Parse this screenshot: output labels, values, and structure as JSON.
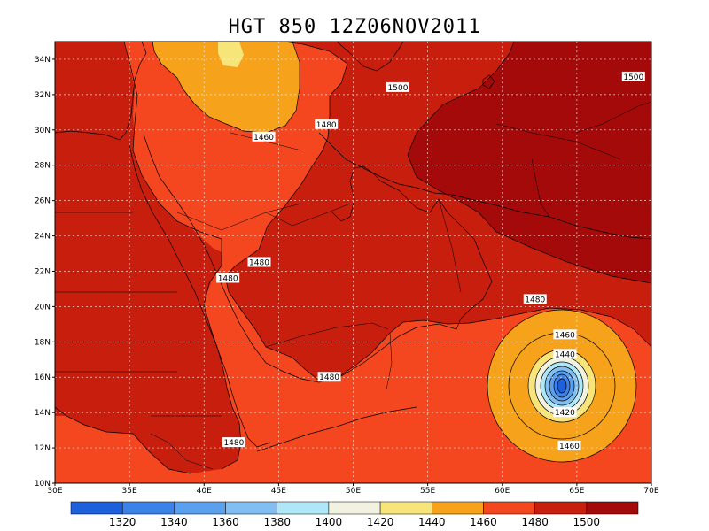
{
  "title": "HGT 850  12Z06NOV2011",
  "map": {
    "lon_range": [
      30,
      70
    ],
    "lat_range": [
      10,
      35
    ],
    "lon_ticks": [
      "30E",
      "35E",
      "40E",
      "45E",
      "50E",
      "55E",
      "60E",
      "65E",
      "70E"
    ],
    "lat_ticks": [
      "10N",
      "12N",
      "14N",
      "16N",
      "18N",
      "20N",
      "22N",
      "24N",
      "26N",
      "28N",
      "30N",
      "32N",
      "34N"
    ],
    "grid": "dashed",
    "contour_labels": [
      {
        "text": "1500",
        "lon": 53.0,
        "lat": 32.4
      },
      {
        "text": "1500",
        "lon": 68.8,
        "lat": 33.0
      },
      {
        "text": "1480",
        "lon": 48.2,
        "lat": 30.3
      },
      {
        "text": "1460",
        "lon": 44.0,
        "lat": 29.6
      },
      {
        "text": "1480",
        "lon": 43.7,
        "lat": 22.5
      },
      {
        "text": "1480",
        "lon": 41.6,
        "lat": 21.6
      },
      {
        "text": "1480",
        "lon": 62.2,
        "lat": 20.4
      },
      {
        "text": "1460",
        "lon": 64.2,
        "lat": 18.4
      },
      {
        "text": "1440",
        "lon": 64.2,
        "lat": 17.3
      },
      {
        "text": "1420",
        "lon": 64.2,
        "lat": 14.0
      },
      {
        "text": "1480",
        "lon": 48.4,
        "lat": 16.0
      },
      {
        "text": "1480",
        "lon": 42.0,
        "lat": 12.3
      },
      {
        "text": "1460",
        "lon": 64.5,
        "lat": 12.1
      }
    ]
  },
  "colorbar": {
    "labels": [
      "1320",
      "1340",
      "1360",
      "1380",
      "1400",
      "1420",
      "1440",
      "1460",
      "1480",
      "1500"
    ],
    "colors": [
      "#1e5fdb",
      "#3c82e8",
      "#5aa0ee",
      "#82bef2",
      "#aee8f8",
      "#f2f2e0",
      "#f8e57a",
      "#f6a21a",
      "#f4471f",
      "#c81e0e",
      "#a50a0a"
    ]
  }
}
